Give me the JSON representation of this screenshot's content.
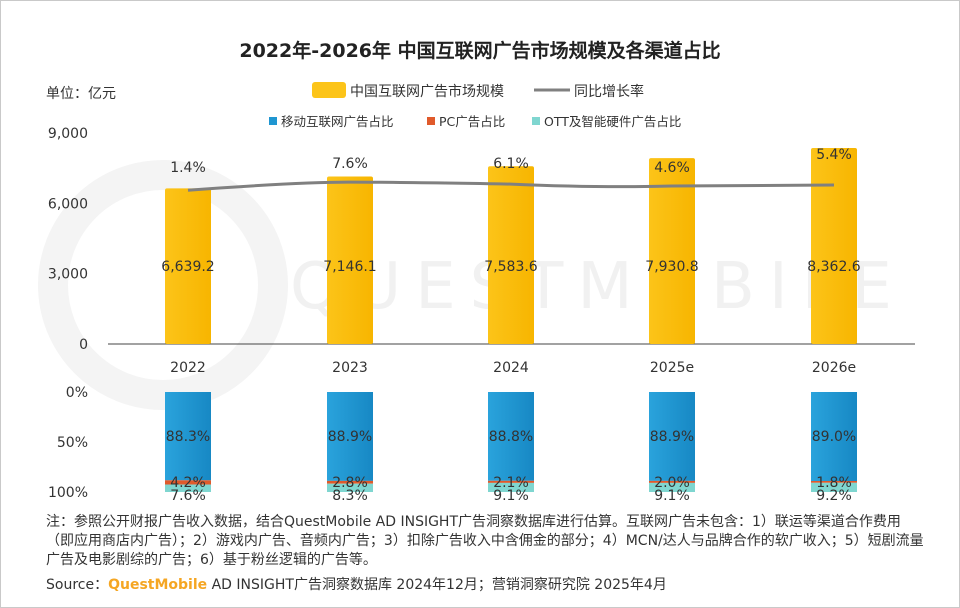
{
  "title": "2022年-2026年 中国互联网广告市场规模及各渠道占比",
  "unit_label": "单位：亿元",
  "legend": {
    "bar": "中国互联网广告市场规模",
    "line": "同比增长率",
    "mobile": "移动互联网广告占比",
    "pc": "PC广告占比",
    "ott": "OTT及智能硬件广告占比"
  },
  "watermark": "QUESTMOBILE",
  "colors": {
    "bar": "#fcc419",
    "bar_dark": "#f7b500",
    "line": "#808080",
    "mobile": "#1f96d1",
    "pc": "#e05a2b",
    "ott": "#7fd6d0"
  },
  "chart_data": [
    {
      "type": "bar",
      "categories": [
        "2022",
        "2023",
        "2024",
        "2025e",
        "2026e"
      ],
      "series": [
        {
          "name": "中国互联网广告市场规模",
          "values": [
            6639.2,
            7146.1,
            7583.6,
            7930.8,
            8362.6
          ],
          "labels": [
            "6,639.2",
            "7,146.1",
            "7,583.6",
            "7,930.8",
            "8,362.6"
          ]
        },
        {
          "name": "同比增长率",
          "values": [
            1.4,
            7.6,
            6.1,
            4.6,
            5.4
          ],
          "labels": [
            "1.4%",
            "7.6%",
            "6.1%",
            "4.6%",
            "5.4%"
          ]
        }
      ],
      "ylim": [
        0,
        9000
      ],
      "yticks": [
        "0",
        "3,000",
        "6,000",
        "9,000"
      ]
    },
    {
      "type": "bar",
      "stacked": true,
      "categories": [
        "2022",
        "2023",
        "2024",
        "2025e",
        "2026e"
      ],
      "series": [
        {
          "name": "移动互联网广告占比",
          "values": [
            88.3,
            88.9,
            88.8,
            88.9,
            89.0
          ],
          "labels": [
            "88.3%",
            "88.9%",
            "88.8%",
            "88.9%",
            "89.0%"
          ]
        },
        {
          "name": "PC广告占比",
          "values": [
            4.2,
            2.8,
            2.1,
            2.0,
            1.8
          ],
          "labels": [
            "4.2%",
            "2.8%",
            "2.1%",
            "2.0%",
            "1.8%"
          ]
        },
        {
          "name": "OTT及智能硬件广告占比",
          "values": [
            7.6,
            8.3,
            9.1,
            9.1,
            9.2
          ],
          "labels": [
            "7.6%",
            "8.3%",
            "9.1%",
            "9.1%",
            "9.2%"
          ]
        }
      ],
      "ylim": [
        0,
        100
      ],
      "yticks": [
        "0%",
        "50%",
        "100%"
      ]
    }
  ],
  "note": "注：参照公开财报广告收入数据，结合QuestMobile AD INSIGHT广告洞察数据库进行估算。互联网广告未包含：1）联运等渠道合作费用（即应用商店内广告）；2）游戏内广告、音频内广告；3）扣除广告收入中含佣金的部分；4）MCN/达人与品牌合作的软广收入；5）短剧流量广告及电影剧综的广告；6）基于粉丝逻辑的广告等。",
  "source": {
    "prefix": "Source：",
    "brand": "QuestMobile",
    "suffix": " AD INSIGHT广告洞察数据库 2024年12月；营销洞察研究院 2025年4月"
  }
}
